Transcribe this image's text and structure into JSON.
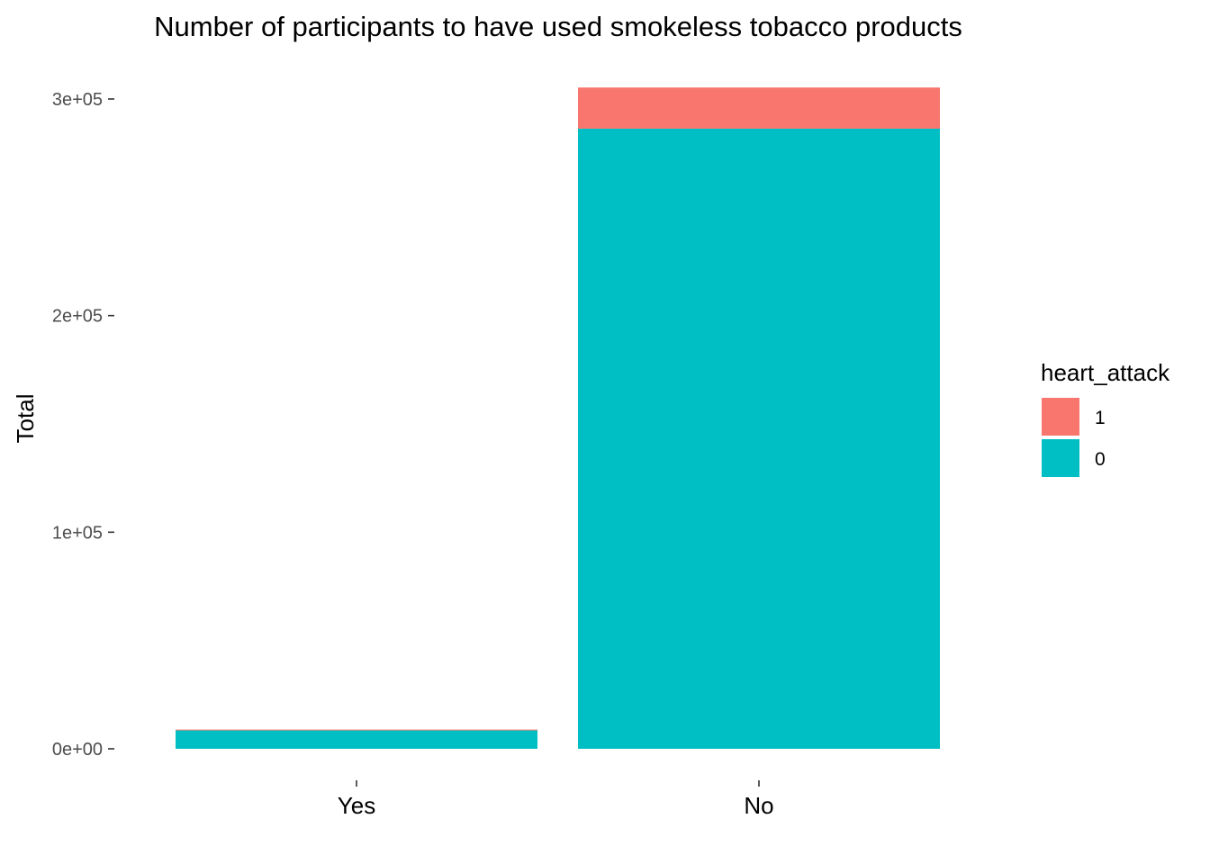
{
  "chart_data": {
    "type": "bar",
    "stacked": true,
    "title": "Number of participants to have used smokeless tobacco products",
    "xlabel": "",
    "ylabel": "Total",
    "categories": [
      "Yes",
      "No"
    ],
    "series": [
      {
        "name": "1",
        "color": "#F8766D",
        "values": [
          400,
          19000
        ]
      },
      {
        "name": "0",
        "color": "#00BFC4",
        "values": [
          8500,
          286300
        ]
      }
    ],
    "y_ticks": [
      {
        "value": 0,
        "label": "0e+00"
      },
      {
        "value": 100000,
        "label": "1e+05"
      },
      {
        "value": 200000,
        "label": "2e+05"
      },
      {
        "value": 300000,
        "label": "3e+05"
      }
    ],
    "ylim": [
      0,
      300000
    ],
    "grid": false,
    "legend": {
      "title": "heart_attack",
      "placement": "right"
    }
  }
}
